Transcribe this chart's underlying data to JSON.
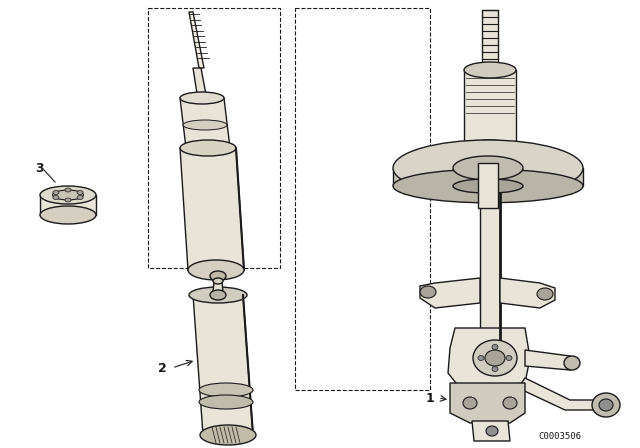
{
  "background_color": "#ffffff",
  "line_color": "#1a1a1a",
  "figsize": [
    6.4,
    4.48
  ],
  "dpi": 100,
  "copyright": "C0003506"
}
